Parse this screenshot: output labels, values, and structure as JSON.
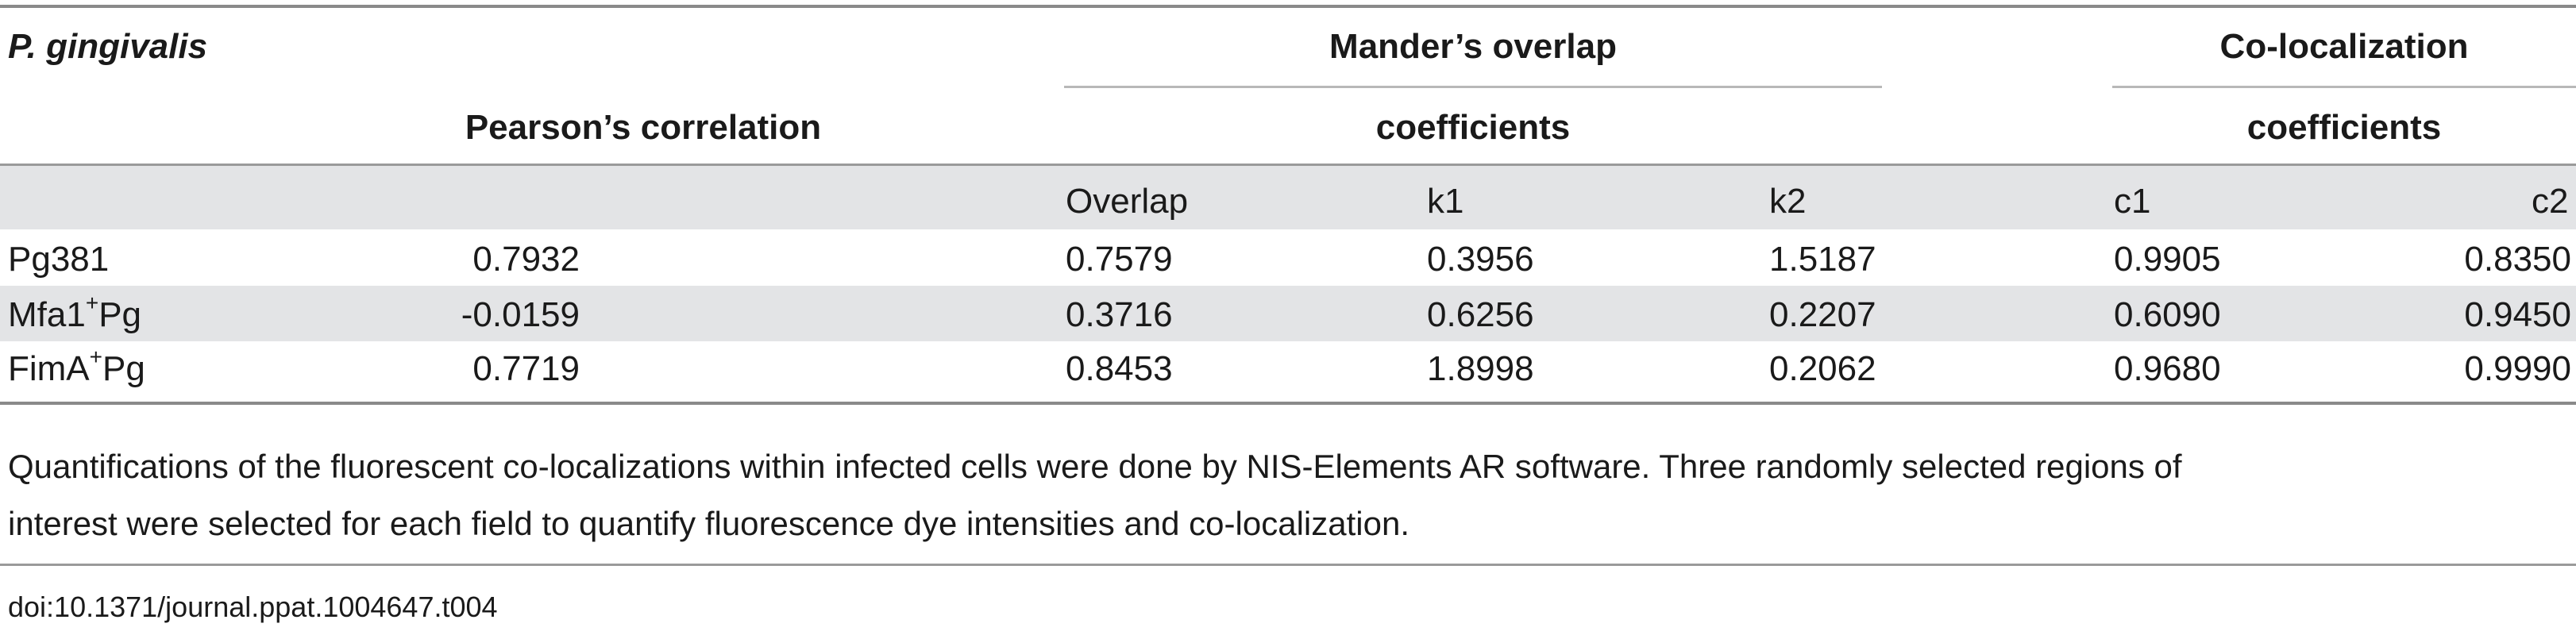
{
  "table": {
    "header": {
      "organism": "P. gingivalis",
      "pearson": "Pearson’s correlation",
      "manders_line1": "Mander’s overlap",
      "manders_line2": "coefficients",
      "coloc_line1": "Co-localization",
      "coloc_line2": "coefficients",
      "sub": [
        "",
        "Overlap",
        "k1",
        "k2",
        "c1",
        "c2"
      ]
    },
    "rows": [
      {
        "label": "Pg381",
        "sup": "",
        "suffix": "",
        "pearson": "0.7932",
        "overlap": "0.7579",
        "k1": "0.3956",
        "k2": "1.5187",
        "c1": "0.9905",
        "c2": "0.8350"
      },
      {
        "label": "Mfa1",
        "sup": "+",
        "suffix": "Pg",
        "pearson": "-0.0159",
        "overlap": "0.3716",
        "k1": "0.6256",
        "k2": "0.2207",
        "c1": "0.6090",
        "c2": "0.9450"
      },
      {
        "label": "FimA",
        "sup": "+",
        "suffix": "Pg",
        "pearson": "0.7719",
        "overlap": "0.8453",
        "k1": "1.8998",
        "k2": "0.2062",
        "c1": "0.9680",
        "c2": "0.9990"
      }
    ]
  },
  "footnote": {
    "line1": "Quantifications of the fluorescent co-localizations within infected cells were done by NIS-Elements AR software. Three randomly selected regions of",
    "line2": "interest were selected for each field to quantify fluorescence dye intensities and co-localization."
  },
  "doi": "doi:10.1371/journal.ppat.1004647.t004"
}
